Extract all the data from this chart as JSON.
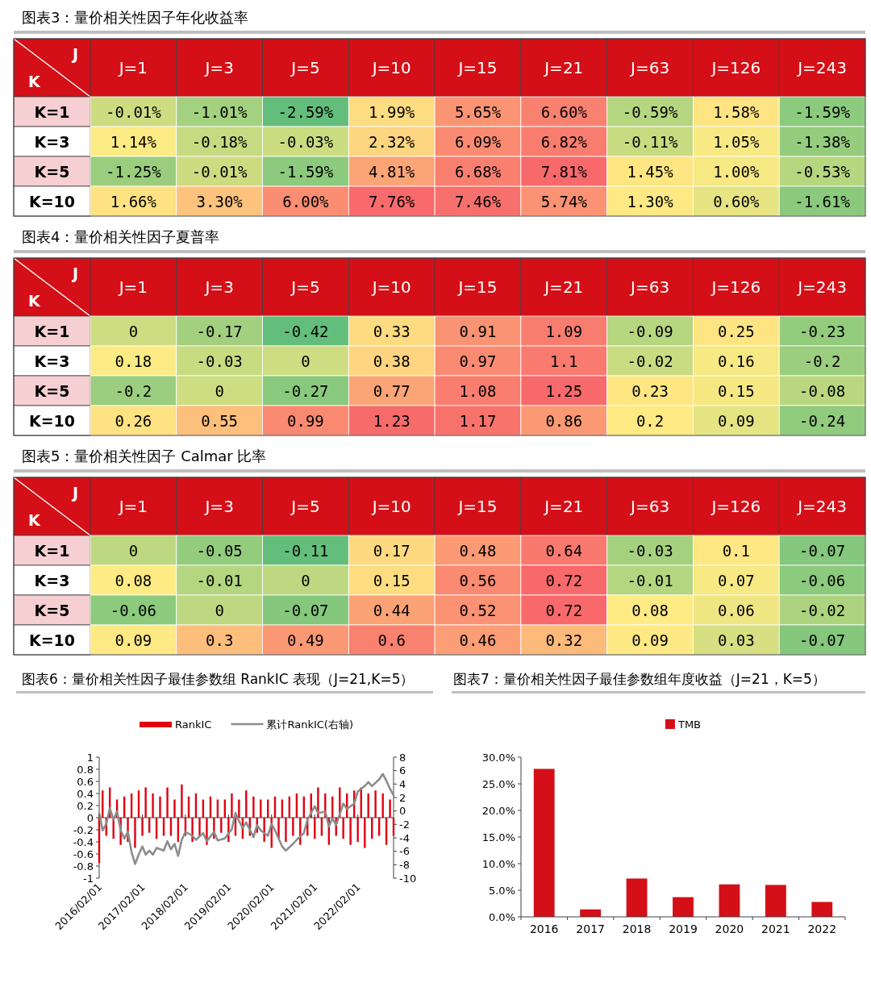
{
  "chart_data": [
    {
      "type": "heatmap",
      "title": "图表3：量价相关性因子年化收益率",
      "xlabel": "J",
      "ylabel": "K",
      "categories": [
        "J=1",
        "J=3",
        "J=5",
        "J=10",
        "J=15",
        "J=21",
        "J=63",
        "J=126",
        "J=243"
      ],
      "y_categories": [
        "K=1",
        "K=3",
        "K=5",
        "K=10"
      ],
      "cells": [
        [
          -0.01,
          -1.01,
          -2.59,
          1.99,
          5.65,
          6.6,
          -0.59,
          1.58,
          -1.59
        ],
        [
          1.14,
          -0.18,
          -0.03,
          2.32,
          6.09,
          6.82,
          -0.11,
          1.05,
          -1.38
        ],
        [
          -1.25,
          -0.01,
          -1.59,
          4.81,
          6.68,
          7.81,
          1.45,
          1.0,
          -0.53
        ],
        [
          1.66,
          3.3,
          6.0,
          7.76,
          7.46,
          5.74,
          1.3,
          0.6,
          -1.61
        ]
      ],
      "cell_labels": [
        [
          "-0.01%",
          "-1.01%",
          "-2.59%",
          "1.99%",
          "5.65%",
          "6.60%",
          "-0.59%",
          "1.58%",
          "-1.59%"
        ],
        [
          "1.14%",
          "-0.18%",
          "-0.03%",
          "2.32%",
          "6.09%",
          "6.82%",
          "-0.11%",
          "1.05%",
          "-1.38%"
        ],
        [
          "-1.25%",
          "-0.01%",
          "-1.59%",
          "4.81%",
          "6.68%",
          "7.81%",
          "1.45%",
          "1.00%",
          "-0.53%"
        ],
        [
          "1.66%",
          "3.30%",
          "6.00%",
          "7.76%",
          "7.46%",
          "5.74%",
          "1.30%",
          "0.60%",
          "-1.61%"
        ]
      ]
    },
    {
      "type": "heatmap",
      "title": "图表4：量价相关性因子夏普率",
      "xlabel": "J",
      "ylabel": "K",
      "data_labels": true,
      "categories": [
        "J=1",
        "J=3",
        "J=5",
        "J=10",
        "J=15",
        "J=21",
        "J=63",
        "J=126",
        "J=243"
      ],
      "y_categories": [
        "K=1",
        "K=3",
        "K=5",
        "K=10"
      ],
      "cells": [
        [
          0,
          -0.17,
          -0.42,
          0.33,
          0.91,
          1.09,
          -0.09,
          0.25,
          -0.23
        ],
        [
          0.18,
          -0.03,
          0,
          0.38,
          0.97,
          1.1,
          -0.02,
          0.16,
          -0.2
        ],
        [
          -0.2,
          0,
          -0.27,
          0.77,
          1.08,
          1.25,
          0.23,
          0.15,
          -0.08
        ],
        [
          0.26,
          0.55,
          0.99,
          1.23,
          1.17,
          0.86,
          0.2,
          0.09,
          -0.24
        ]
      ]
    },
    {
      "type": "heatmap",
      "title": "图表5：量价相关性因子 Calmar 比率",
      "xlabel": "J",
      "ylabel": "K",
      "data_labels": true,
      "categories": [
        "J=1",
        "J=3",
        "J=5",
        "J=10",
        "J=15",
        "J=21",
        "J=63",
        "J=126",
        "J=243"
      ],
      "y_categories": [
        "K=1",
        "K=3",
        "K=5",
        "K=10"
      ],
      "cells": [
        [
          0,
          -0.05,
          -0.11,
          0.17,
          0.48,
          0.64,
          -0.03,
          0.1,
          -0.07
        ],
        [
          0.08,
          -0.01,
          0,
          0.15,
          0.56,
          0.72,
          -0.01,
          0.07,
          -0.06
        ],
        [
          -0.06,
          0,
          -0.07,
          0.44,
          0.52,
          0.72,
          0.08,
          0.06,
          -0.02
        ],
        [
          0.09,
          0.3,
          0.49,
          0.6,
          0.46,
          0.32,
          0.09,
          0.03,
          -0.07
        ]
      ]
    },
    {
      "type": "bar",
      "title": "图表6：量价相关性因子最佳参数组 RankIC 表现（J=21,K=5）",
      "legend": "top",
      "xlim": [
        "2016-02-01",
        "2022-12-01"
      ],
      "xticks": [
        {
          "value": "2016-02-01",
          "label": "2016/02/01"
        },
        {
          "value": "2017-02-01",
          "label": "2017/02/01"
        },
        {
          "value": "2018-02-01",
          "label": "2018/02/01"
        },
        {
          "value": "2019-02-01",
          "label": "2019/02/01"
        },
        {
          "value": "2020-02-01",
          "label": "2020/02/01"
        },
        {
          "value": "2021-02-01",
          "label": "2021/02/01"
        },
        {
          "value": "2022-02-01",
          "label": "2022/02/01"
        }
      ],
      "ylim": [
        -1,
        1
      ],
      "yticks": [
        -1,
        -0.8,
        -0.6,
        -0.4,
        -0.2,
        0,
        0.2,
        0.4,
        0.6,
        0.8,
        1
      ],
      "y2lim": [
        -10,
        8
      ],
      "y2ticks": [
        -10,
        -8,
        -6,
        -4,
        -2,
        0,
        2,
        4,
        6,
        8
      ],
      "series": [
        {
          "name": "RankIC",
          "type": "bar",
          "color": "#e00010",
          "x": [
            "2016-02",
            "2016-03",
            "2016-04",
            "2016-05",
            "2016-06",
            "2016-07",
            "2016-08",
            "2016-09",
            "2016-10",
            "2016-11",
            "2016-12",
            "2017-01",
            "2017-02",
            "2017-03",
            "2017-04",
            "2017-05",
            "2017-06",
            "2017-07",
            "2017-08",
            "2017-09",
            "2017-10",
            "2017-11",
            "2017-12",
            "2018-01",
            "2018-02",
            "2018-03",
            "2018-04",
            "2018-05",
            "2018-06",
            "2018-07",
            "2018-08",
            "2018-09",
            "2018-10",
            "2018-11",
            "2018-12",
            "2019-01",
            "2019-02",
            "2019-03",
            "2019-04",
            "2019-05",
            "2019-06",
            "2019-07",
            "2019-08",
            "2019-09",
            "2019-10",
            "2019-11",
            "2019-12",
            "2020-01",
            "2020-02",
            "2020-03",
            "2020-04",
            "2020-05",
            "2020-06",
            "2020-07",
            "2020-08",
            "2020-09",
            "2020-10",
            "2020-11",
            "2020-12",
            "2021-01",
            "2021-02",
            "2021-03",
            "2021-04",
            "2021-05",
            "2021-06",
            "2021-07",
            "2021-08",
            "2021-09",
            "2021-10",
            "2021-11",
            "2021-12",
            "2022-01",
            "2022-02",
            "2022-03",
            "2022-04",
            "2022-05",
            "2022-06",
            "2022-07",
            "2022-08",
            "2022-09",
            "2022-10",
            "2022-11",
            "2022-12"
          ],
          "values": [
            -0.75,
            0.45,
            -0.3,
            0.5,
            -0.35,
            0.3,
            -0.45,
            0.35,
            -0.4,
            0.4,
            -0.5,
            0.45,
            -0.3,
            0.5,
            -0.25,
            0.4,
            -0.35,
            0.35,
            -0.3,
            0.5,
            -0.3,
            0.3,
            -0.4,
            0.55,
            -0.3,
            0.35,
            -0.4,
            0.4,
            -0.3,
            0.3,
            -0.45,
            0.35,
            -0.35,
            0.3,
            -0.25,
            0.3,
            -0.4,
            0.4,
            -0.3,
            0.3,
            -0.35,
            0.45,
            -0.3,
            0.35,
            -0.25,
            0.3,
            -0.4,
            0.3,
            -0.5,
            0.35,
            -0.35,
            0.3,
            -0.4,
            0.35,
            -0.3,
            0.4,
            -0.45,
            0.35,
            -0.3,
            0.4,
            -0.35,
            0.5,
            -0.3,
            0.4,
            -0.45,
            0.35,
            -0.3,
            0.5,
            -0.35,
            0.4,
            -0.45,
            0.45,
            -0.4,
            0.5,
            -0.5,
            0.4,
            -0.35,
            0.45,
            -0.3,
            0.4,
            -0.45,
            0.3,
            -0.3
          ]
        },
        {
          "name": "累计RankIC(右轴)",
          "type": "line",
          "color": "#8c8c8c",
          "axis": "y2",
          "x": [
            "2016-02",
            "2016-03",
            "2016-04",
            "2016-05",
            "2016-06",
            "2016-07",
            "2016-08",
            "2016-09",
            "2016-10",
            "2016-11",
            "2016-12",
            "2017-01",
            "2017-02",
            "2017-03",
            "2017-04",
            "2017-05",
            "2017-06",
            "2017-08",
            "2017-09",
            "2017-10",
            "2017-11",
            "2017-12",
            "2018-01",
            "2018-02",
            "2018-04",
            "2018-05",
            "2018-07",
            "2018-08",
            "2018-10",
            "2018-11",
            "2019-01",
            "2019-03",
            "2019-04",
            "2019-05",
            "2019-06",
            "2019-07",
            "2019-09",
            "2019-10",
            "2019-11",
            "2020-01",
            "2020-02",
            "2020-03",
            "2020-05",
            "2020-06",
            "2020-08",
            "2020-09",
            "2020-11",
            "2020-12",
            "2021-02",
            "2021-03",
            "2021-05",
            "2021-06",
            "2021-07",
            "2021-08",
            "2021-10",
            "2021-11",
            "2022-01",
            "2022-02",
            "2022-04",
            "2022-05",
            "2022-06",
            "2022-08",
            "2022-09",
            "2022-10",
            "2022-11",
            "2022-12"
          ],
          "values": [
            -0.3,
            -2.9,
            -1.9,
            0.4,
            -1.3,
            -0.1,
            -2.9,
            -4.1,
            -3.1,
            -6.1,
            -7.9,
            -6.5,
            -5.3,
            -6.5,
            -5.9,
            -6.5,
            -5.5,
            -5.9,
            -4.5,
            -5.7,
            -4.9,
            -6.7,
            -4.3,
            -3.1,
            -3.7,
            -4.3,
            -3.3,
            -4.5,
            -3.1,
            -4.4,
            -4.1,
            -2.7,
            -0.3,
            -1.5,
            -2.5,
            -1.7,
            -3.9,
            -2.1,
            -2.9,
            -3.7,
            -1.9,
            -2.9,
            -5.3,
            -5.9,
            -4.9,
            -4.3,
            -3.3,
            -1.3,
            0.7,
            -0.3,
            -0.1,
            -2.3,
            -1.1,
            -2.1,
            1.1,
            0.3,
            1.1,
            2.9,
            3.7,
            4.3,
            3.7,
            4.7,
            5.5,
            4.5,
            3.3,
            2.3
          ]
        }
      ]
    },
    {
      "type": "bar",
      "title": "图表7：量价相关性因子最佳参数组年度收益（J=21，K=5）",
      "legend": "top",
      "categories": [
        "2016",
        "2017",
        "2018",
        "2019",
        "2020",
        "2021",
        "2022"
      ],
      "ylim": [
        0,
        30
      ],
      "yticks": [
        {
          "value": 0,
          "label": "0.0%"
        },
        {
          "value": 5,
          "label": "5.0%"
        },
        {
          "value": 10,
          "label": "10.0%"
        },
        {
          "value": 15,
          "label": "15.0%"
        },
        {
          "value": 20,
          "label": "20.0%"
        },
        {
          "value": 25,
          "label": "25.0%"
        },
        {
          "value": 30,
          "label": "30.0%"
        }
      ],
      "series": [
        {
          "name": "TMB",
          "color": "#d40f17",
          "values": [
            27.8,
            1.4,
            7.2,
            3.7,
            6.1,
            6.0,
            2.8
          ]
        }
      ]
    }
  ]
}
